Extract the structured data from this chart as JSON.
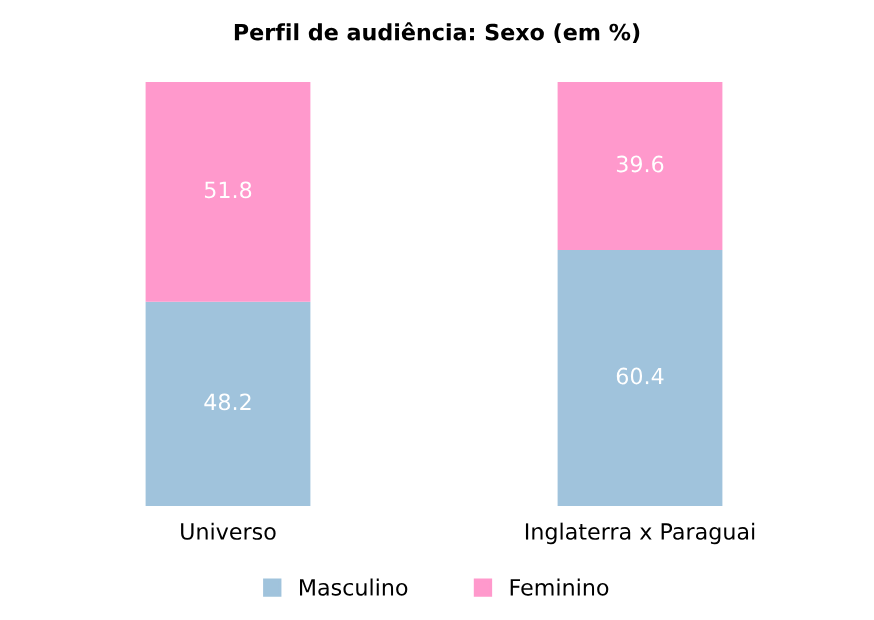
{
  "chart_data": {
    "type": "bar",
    "title": "Perfil de audiência: Sexo (em %)",
    "categories": [
      "Universo",
      "Inglaterra x Paraguai"
    ],
    "stacked": true,
    "data_labels": true,
    "legend": "bottom",
    "grid": false,
    "series": [
      {
        "name": "Masculino",
        "color": "#a0c3dc",
        "values": [
          48.2,
          60.4
        ]
      },
      {
        "name": "Feminino",
        "color": "#ff99cc",
        "values": [
          51.8,
          39.6
        ]
      }
    ]
  }
}
